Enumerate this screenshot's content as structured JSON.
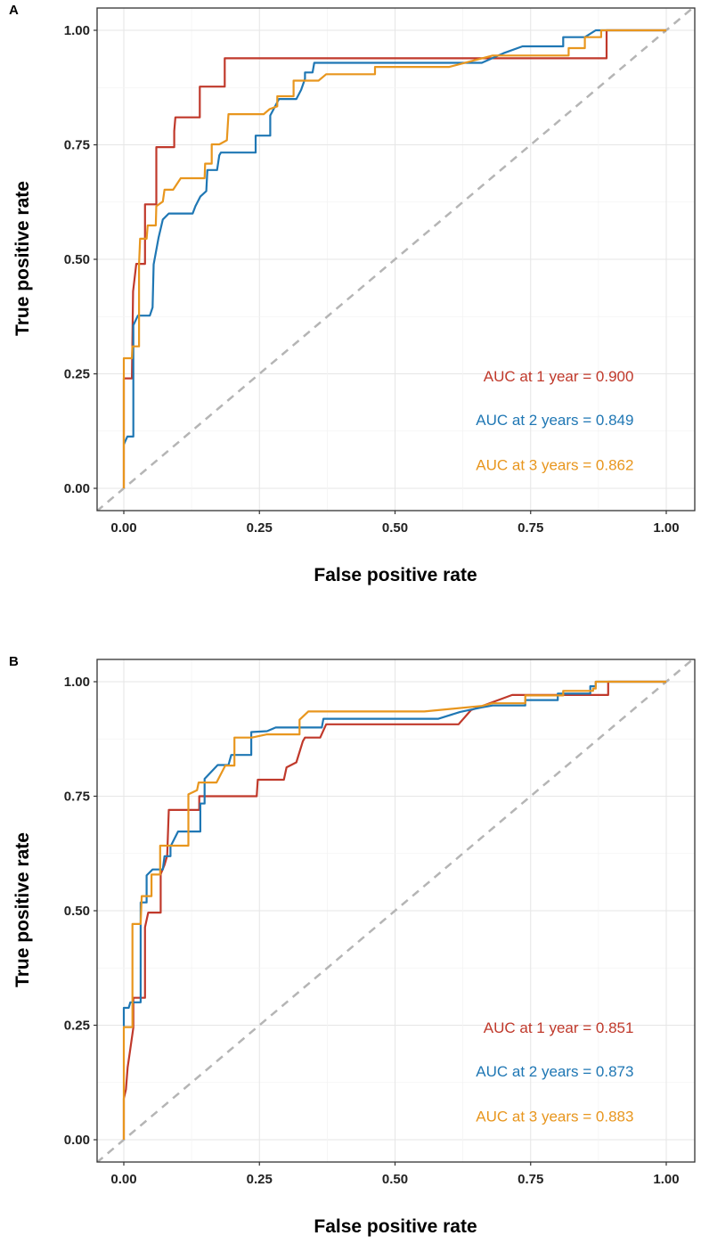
{
  "chart_data": [
    {
      "type": "line",
      "panel_label": "A",
      "xlabel": "False positive rate",
      "ylabel": "True positive rate",
      "xlim": [
        0,
        1
      ],
      "ylim": [
        0,
        1
      ],
      "xticks": [
        "0.00",
        "0.25",
        "0.50",
        "0.75",
        "1.00"
      ],
      "yticks": [
        "0.00",
        "0.25",
        "0.50",
        "0.75",
        "1.00"
      ],
      "grid": true,
      "reference_line": "diagonal dashed gray",
      "annotations": [
        "AUC at 1 year = 0.900",
        "AUC at 2 years = 0.849",
        "AUC at 3 years = 0.862"
      ],
      "series": [
        {
          "color": "#C0392B",
          "auc": 0.9,
          "points": [
            [
              0,
              0
            ],
            [
              0,
              0.24
            ],
            [
              0.015,
              0.24
            ],
            [
              0.017,
              0.43
            ],
            [
              0.023,
              0.49
            ],
            [
              0.039,
              0.49
            ],
            [
              0.039,
              0.62
            ],
            [
              0.06,
              0.62
            ],
            [
              0.06,
              0.745
            ],
            [
              0.093,
              0.745
            ],
            [
              0.093,
              0.78
            ],
            [
              0.095,
              0.81
            ],
            [
              0.14,
              0.81
            ],
            [
              0.14,
              0.877
            ],
            [
              0.186,
              0.877
            ],
            [
              0.186,
              0.939
            ],
            [
              0.89,
              0.939
            ],
            [
              0.89,
              1
            ],
            [
              1,
              1
            ]
          ]
        },
        {
          "color": "#1F77B4",
          "auc": 0.849,
          "points": [
            [
              0,
              0.096
            ],
            [
              0.0066,
              0.113
            ],
            [
              0.0175,
              0.113
            ],
            [
              0.0175,
              0.356
            ],
            [
              0.026,
              0.377
            ],
            [
              0.048,
              0.377
            ],
            [
              0.053,
              0.395
            ],
            [
              0.055,
              0.489
            ],
            [
              0.064,
              0.547
            ],
            [
              0.072,
              0.587
            ],
            [
              0.083,
              0.6
            ],
            [
              0.127,
              0.6
            ],
            [
              0.132,
              0.616
            ],
            [
              0.141,
              0.637
            ],
            [
              0.152,
              0.649
            ],
            [
              0.154,
              0.695
            ],
            [
              0.172,
              0.695
            ],
            [
              0.176,
              0.727
            ],
            [
              0.179,
              0.733
            ],
            [
              0.243,
              0.733
            ],
            [
              0.243,
              0.77
            ],
            [
              0.27,
              0.77
            ],
            [
              0.27,
              0.814
            ],
            [
              0.286,
              0.85
            ],
            [
              0.318,
              0.85
            ],
            [
              0.327,
              0.87
            ],
            [
              0.334,
              0.894
            ],
            [
              0.334,
              0.908
            ],
            [
              0.348,
              0.908
            ],
            [
              0.351,
              0.929
            ],
            [
              0.66,
              0.929
            ],
            [
              0.7,
              0.95
            ],
            [
              0.735,
              0.965
            ],
            [
              0.81,
              0.965
            ],
            [
              0.81,
              0.985
            ],
            [
              0.85,
              0.985
            ],
            [
              0.87,
              1
            ],
            [
              1,
              1
            ]
          ]
        },
        {
          "color": "#E8961E",
          "auc": 0.862,
          "points": [
            [
              0,
              0
            ],
            [
              0,
              0.284
            ],
            [
              0.015,
              0.284
            ],
            [
              0.016,
              0.31
            ],
            [
              0.028,
              0.31
            ],
            [
              0.028,
              0.489
            ],
            [
              0.03,
              0.545
            ],
            [
              0.042,
              0.545
            ],
            [
              0.044,
              0.574
            ],
            [
              0.059,
              0.574
            ],
            [
              0.06,
              0.616
            ],
            [
              0.072,
              0.626
            ],
            [
              0.075,
              0.652
            ],
            [
              0.091,
              0.652
            ],
            [
              0.105,
              0.677
            ],
            [
              0.149,
              0.677
            ],
            [
              0.15,
              0.709
            ],
            [
              0.162,
              0.709
            ],
            [
              0.162,
              0.751
            ],
            [
              0.176,
              0.751
            ],
            [
              0.19,
              0.76
            ],
            [
              0.193,
              0.817
            ],
            [
              0.258,
              0.817
            ],
            [
              0.269,
              0.828
            ],
            [
              0.283,
              0.834
            ],
            [
              0.283,
              0.856
            ],
            [
              0.313,
              0.856
            ],
            [
              0.313,
              0.89
            ],
            [
              0.359,
              0.89
            ],
            [
              0.373,
              0.904
            ],
            [
              0.463,
              0.904
            ],
            [
              0.463,
              0.92
            ],
            [
              0.6,
              0.92
            ],
            [
              0.68,
              0.945
            ],
            [
              0.82,
              0.945
            ],
            [
              0.82,
              0.961
            ],
            [
              0.85,
              0.961
            ],
            [
              0.85,
              0.985
            ],
            [
              0.88,
              0.985
            ],
            [
              0.88,
              1
            ],
            [
              1,
              1
            ]
          ]
        }
      ]
    },
    {
      "type": "line",
      "panel_label": "B",
      "xlabel": "False positive rate",
      "ylabel": "True positive rate",
      "xlim": [
        0,
        1
      ],
      "ylim": [
        0,
        1
      ],
      "xticks": [
        "0.00",
        "0.25",
        "0.50",
        "0.75",
        "1.00"
      ],
      "yticks": [
        "0.00",
        "0.25",
        "0.50",
        "0.75",
        "1.00"
      ],
      "grid": true,
      "reference_line": "diagonal dashed gray",
      "annotations": [
        "AUC at 1 year = 0.851",
        "AUC at 2 years = 0.873",
        "AUC at 3 years = 0.883"
      ],
      "series": [
        {
          "color": "#C0392B",
          "auc": 0.851,
          "points": [
            [
              0,
              0
            ],
            [
              0,
              0.09
            ],
            [
              0.004,
              0.11
            ],
            [
              0.007,
              0.158
            ],
            [
              0.011,
              0.19
            ],
            [
              0.0175,
              0.245
            ],
            [
              0.0175,
              0.31
            ],
            [
              0.039,
              0.31
            ],
            [
              0.039,
              0.464
            ],
            [
              0.045,
              0.496
            ],
            [
              0.068,
              0.496
            ],
            [
              0.068,
              0.58
            ],
            [
              0.075,
              0.6
            ],
            [
              0.08,
              0.62
            ],
            [
              0.083,
              0.72
            ],
            [
              0.139,
              0.72
            ],
            [
              0.139,
              0.75
            ],
            [
              0.245,
              0.75
            ],
            [
              0.247,
              0.786
            ],
            [
              0.295,
              0.786
            ],
            [
              0.3,
              0.813
            ],
            [
              0.318,
              0.824
            ],
            [
              0.33,
              0.87
            ],
            [
              0.334,
              0.878
            ],
            [
              0.362,
              0.878
            ],
            [
              0.373,
              0.907
            ],
            [
              0.617,
              0.907
            ],
            [
              0.64,
              0.938
            ],
            [
              0.716,
              0.971
            ],
            [
              0.893,
              0.971
            ],
            [
              0.893,
              1
            ],
            [
              1,
              1
            ]
          ]
        },
        {
          "color": "#1F77B4",
          "auc": 0.873,
          "points": [
            [
              0,
              0.248
            ],
            [
              0,
              0.288
            ],
            [
              0.009,
              0.288
            ],
            [
              0.012,
              0.3
            ],
            [
              0.031,
              0.3
            ],
            [
              0.031,
              0.518
            ],
            [
              0.042,
              0.518
            ],
            [
              0.042,
              0.577
            ],
            [
              0.053,
              0.59
            ],
            [
              0.072,
              0.59
            ],
            [
              0.075,
              0.619
            ],
            [
              0.086,
              0.619
            ],
            [
              0.086,
              0.64
            ],
            [
              0.1,
              0.673
            ],
            [
              0.141,
              0.673
            ],
            [
              0.141,
              0.734
            ],
            [
              0.149,
              0.734
            ],
            [
              0.149,
              0.788
            ],
            [
              0.173,
              0.818
            ],
            [
              0.193,
              0.818
            ],
            [
              0.198,
              0.84
            ],
            [
              0.235,
              0.84
            ],
            [
              0.235,
              0.89
            ],
            [
              0.264,
              0.892
            ],
            [
              0.28,
              0.9
            ],
            [
              0.365,
              0.9
            ],
            [
              0.368,
              0.919
            ],
            [
              0.58,
              0.919
            ],
            [
              0.62,
              0.934
            ],
            [
              0.66,
              0.944
            ],
            [
              0.68,
              0.948
            ],
            [
              0.74,
              0.948
            ],
            [
              0.74,
              0.96
            ],
            [
              0.8,
              0.96
            ],
            [
              0.8,
              0.974
            ],
            [
              0.86,
              0.974
            ],
            [
              0.86,
              0.99
            ],
            [
              0.87,
              0.99
            ],
            [
              0.87,
              1
            ],
            [
              1,
              1
            ]
          ]
        },
        {
          "color": "#E8961E",
          "auc": 0.883,
          "points": [
            [
              0,
              0
            ],
            [
              0,
              0.246
            ],
            [
              0.016,
              0.246
            ],
            [
              0.016,
              0.471
            ],
            [
              0.031,
              0.471
            ],
            [
              0.033,
              0.532
            ],
            [
              0.051,
              0.532
            ],
            [
              0.051,
              0.579
            ],
            [
              0.067,
              0.579
            ],
            [
              0.067,
              0.642
            ],
            [
              0.119,
              0.642
            ],
            [
              0.119,
              0.754
            ],
            [
              0.135,
              0.763
            ],
            [
              0.138,
              0.78
            ],
            [
              0.171,
              0.78
            ],
            [
              0.187,
              0.817
            ],
            [
              0.204,
              0.817
            ],
            [
              0.204,
              0.878
            ],
            [
              0.236,
              0.878
            ],
            [
              0.264,
              0.885
            ],
            [
              0.324,
              0.885
            ],
            [
              0.324,
              0.917
            ],
            [
              0.34,
              0.935
            ],
            [
              0.554,
              0.935
            ],
            [
              0.66,
              0.947
            ],
            [
              0.68,
              0.953
            ],
            [
              0.74,
              0.953
            ],
            [
              0.74,
              0.97
            ],
            [
              0.81,
              0.97
            ],
            [
              0.81,
              0.98
            ],
            [
              0.865,
              0.98
            ],
            [
              0.865,
              0.985
            ],
            [
              0.87,
              0.985
            ],
            [
              0.87,
              1
            ],
            [
              1,
              1
            ]
          ]
        }
      ]
    }
  ]
}
